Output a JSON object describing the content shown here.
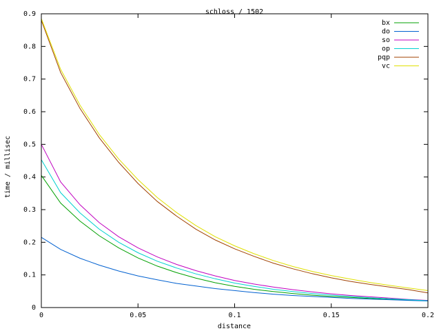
{
  "chart_data": {
    "type": "line",
    "title": "schloss / 1502",
    "xlabel": "distance",
    "ylabel": "time / millisec",
    "xlim": [
      0,
      0.2
    ],
    "ylim": [
      0,
      0.9
    ],
    "xticks": [
      0,
      0.05,
      0.1,
      0.15,
      0.2
    ],
    "xtick_labels": [
      "0",
      "0.05",
      "0.1",
      "0.15",
      "0.2"
    ],
    "yticks": [
      0,
      0.1,
      0.2,
      0.3,
      0.4,
      0.5,
      0.6,
      0.7,
      0.8,
      0.9
    ],
    "ytick_labels": [
      "0",
      "0.1",
      "0.2",
      "0.3",
      "0.4",
      "0.5",
      "0.6",
      "0.7",
      "0.8",
      "0.9"
    ],
    "grid": false,
    "legend_position": "top-right",
    "x": [
      0,
      0.01,
      0.02,
      0.03,
      0.04,
      0.05,
      0.06,
      0.07,
      0.08,
      0.09,
      0.1,
      0.11,
      0.12,
      0.13,
      0.14,
      0.15,
      0.16,
      0.17,
      0.18,
      0.19,
      0.2
    ],
    "series": [
      {
        "name": "bx",
        "color": "#00a000",
        "values": [
          0.405,
          0.32,
          0.265,
          0.22,
          0.183,
          0.152,
          0.127,
          0.107,
          0.09,
          0.076,
          0.065,
          0.056,
          0.049,
          0.043,
          0.038,
          0.034,
          0.031,
          0.028,
          0.025,
          0.023,
          0.021
        ]
      },
      {
        "name": "do",
        "color": "#0060d0",
        "values": [
          0.215,
          0.178,
          0.151,
          0.13,
          0.112,
          0.097,
          0.085,
          0.074,
          0.066,
          0.058,
          0.052,
          0.046,
          0.041,
          0.037,
          0.034,
          0.031,
          0.028,
          0.026,
          0.024,
          0.022,
          0.02
        ]
      },
      {
        "name": "so",
        "color": "#c000c0",
        "values": [
          0.5,
          0.385,
          0.315,
          0.26,
          0.217,
          0.183,
          0.155,
          0.132,
          0.113,
          0.097,
          0.083,
          0.072,
          0.063,
          0.055,
          0.048,
          0.042,
          0.037,
          0.033,
          0.029,
          0.025,
          0.022
        ]
      },
      {
        "name": "op",
        "color": "#00d0d0",
        "values": [
          0.453,
          0.352,
          0.29,
          0.24,
          0.2,
          0.168,
          0.142,
          0.121,
          0.103,
          0.088,
          0.075,
          0.065,
          0.056,
          0.049,
          0.043,
          0.038,
          0.034,
          0.03,
          0.027,
          0.024,
          0.021
        ]
      },
      {
        "name": "pqp",
        "color": "#a04000",
        "values": [
          0.88,
          0.72,
          0.61,
          0.52,
          0.445,
          0.38,
          0.325,
          0.28,
          0.24,
          0.207,
          0.18,
          0.157,
          0.136,
          0.119,
          0.104,
          0.091,
          0.08,
          0.071,
          0.063,
          0.055,
          0.045
        ]
      },
      {
        "name": "vc",
        "color": "#e0e000",
        "values": [
          0.885,
          0.73,
          0.62,
          0.53,
          0.455,
          0.392,
          0.337,
          0.291,
          0.251,
          0.217,
          0.189,
          0.165,
          0.144,
          0.126,
          0.111,
          0.098,
          0.087,
          0.077,
          0.068,
          0.06,
          0.052
        ]
      }
    ]
  }
}
